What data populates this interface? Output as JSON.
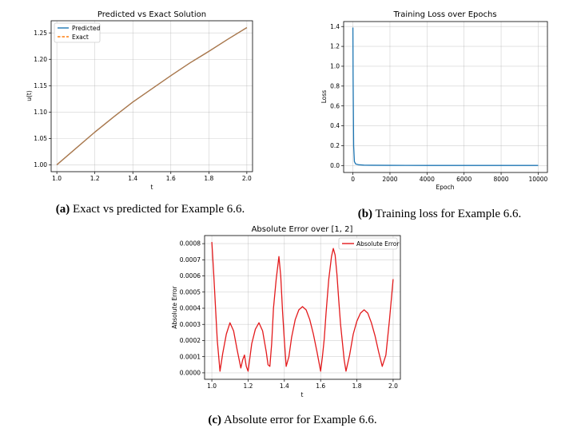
{
  "charts": [
    {
      "id": "a",
      "title": "Predicted vs Exact Solution",
      "xlabel": "t",
      "ylabel": "u(t)",
      "caption_label": "(a)",
      "caption_text": " Exact vs predicted for Example 6.6."
    },
    {
      "id": "b",
      "title": "Training Loss over Epochs",
      "xlabel": "Epoch",
      "ylabel": "Loss",
      "caption_label": "(b)",
      "caption_text": " Training loss for Example 6.6."
    },
    {
      "id": "c",
      "title": "Absolute Error over [1, 2]",
      "xlabel": "t",
      "ylabel": "Absolute Error",
      "caption_label": "(c)",
      "caption_text": " Absolute error for Example 6.6."
    }
  ],
  "chart_data": [
    {
      "type": "line",
      "title": "Predicted vs Exact Solution",
      "xlabel": "t",
      "ylabel": "u(t)",
      "xlim": [
        0.97,
        2.03
      ],
      "ylim": [
        0.987,
        1.273
      ],
      "xticks": [
        "1.0",
        "1.2",
        "1.4",
        "1.6",
        "1.8",
        "2.0"
      ],
      "yticks": [
        "1.00",
        "1.05",
        "1.10",
        "1.15",
        "1.20",
        "1.25"
      ],
      "grid": true,
      "legend": "top-left",
      "series": [
        {
          "name": "Predicted",
          "color": "#1f77b4",
          "style": "solid",
          "x": [
            1.0,
            1.1,
            1.2,
            1.3,
            1.4,
            1.5,
            1.6,
            1.7,
            1.8,
            1.9,
            2.0
          ],
          "y": [
            1.0,
            1.031,
            1.062,
            1.091,
            1.119,
            1.144,
            1.169,
            1.193,
            1.215,
            1.238,
            1.26
          ]
        },
        {
          "name": "Exact",
          "color": "#ff7f0e",
          "style": "dashed",
          "x": [
            1.0,
            1.1,
            1.2,
            1.3,
            1.4,
            1.5,
            1.6,
            1.7,
            1.8,
            1.9,
            2.0
          ],
          "y": [
            1.0,
            1.031,
            1.062,
            1.091,
            1.119,
            1.144,
            1.169,
            1.193,
            1.215,
            1.238,
            1.26
          ]
        }
      ],
      "overlap_color": "#a9794f"
    },
    {
      "type": "line",
      "title": "Training Loss over Epochs",
      "xlabel": "Epoch",
      "ylabel": "Loss",
      "xlim": [
        -500,
        10500
      ],
      "ylim": [
        -0.07,
        1.45
      ],
      "xticks": [
        "0",
        "2000",
        "4000",
        "6000",
        "8000",
        "10000"
      ],
      "yticks": [
        "0.0",
        "0.2",
        "0.4",
        "0.6",
        "0.8",
        "1.0",
        "1.2",
        "1.4"
      ],
      "grid": true,
      "series": [
        {
          "color": "#1f77b4",
          "x": [
            0,
            10,
            40,
            80,
            150,
            300,
            600,
            1000,
            2000,
            4000,
            6000,
            8000,
            10000
          ],
          "y": [
            1.39,
            0.9,
            0.2,
            0.04,
            0.015,
            0.008,
            0.004,
            0.003,
            0.002,
            0.001,
            0.001,
            0.001,
            0.001
          ]
        }
      ]
    },
    {
      "type": "line",
      "title": "Absolute Error over [1, 2]",
      "xlabel": "t",
      "ylabel": "Absolute Error",
      "xlim": [
        0.96,
        2.04
      ],
      "ylim": [
        -4e-05,
        0.00085
      ],
      "xticks": [
        "1.0",
        "1.2",
        "1.4",
        "1.6",
        "1.8",
        "2.0"
      ],
      "yticks": [
        "0.0000",
        "0.0001",
        "0.0002",
        "0.0003",
        "0.0004",
        "0.0005",
        "0.0006",
        "0.0007",
        "0.0008"
      ],
      "grid": true,
      "legend": "top-right",
      "series": [
        {
          "name": "Absolute Error",
          "color": "#e31a1c",
          "x": [
            1.0,
            1.01,
            1.02,
            1.03,
            1.045,
            1.06,
            1.08,
            1.1,
            1.12,
            1.14,
            1.16,
            1.17,
            1.18,
            1.19,
            1.2,
            1.22,
            1.24,
            1.26,
            1.28,
            1.3,
            1.31,
            1.32,
            1.33,
            1.34,
            1.355,
            1.37,
            1.38,
            1.39,
            1.4,
            1.41,
            1.425,
            1.44,
            1.46,
            1.48,
            1.5,
            1.52,
            1.54,
            1.56,
            1.58,
            1.6,
            1.61,
            1.62,
            1.63,
            1.645,
            1.66,
            1.67,
            1.68,
            1.69,
            1.7,
            1.71,
            1.72,
            1.73,
            1.74,
            1.76,
            1.78,
            1.8,
            1.82,
            1.84,
            1.86,
            1.88,
            1.9,
            1.92,
            1.94,
            1.96,
            1.98,
            2.0
          ],
          "y": [
            0.00081,
            0.00062,
            0.00041,
            0.0002,
            1e-05,
            0.00012,
            0.00024,
            0.00031,
            0.00026,
            0.00014,
            3e-05,
            8e-05,
            0.00011,
            4e-05,
            1e-05,
            0.00018,
            0.00027,
            0.00031,
            0.00026,
            0.00013,
            5e-05,
            4e-05,
            0.00018,
            0.0004,
            0.00058,
            0.00072,
            0.0006,
            0.00038,
            0.0002,
            4e-05,
            0.0001,
            0.00022,
            0.00033,
            0.00039,
            0.00041,
            0.00039,
            0.00033,
            0.00024,
            0.00013,
            1e-05,
            0.0001,
            0.00021,
            0.00037,
            0.00058,
            0.00072,
            0.00077,
            0.00073,
            0.00061,
            0.00045,
            0.0003,
            0.00019,
            8e-05,
            1e-05,
            0.00011,
            0.00024,
            0.00032,
            0.00037,
            0.00039,
            0.00037,
            0.00031,
            0.00023,
            0.00013,
            4e-05,
            0.00011,
            0.00033,
            0.00058
          ]
        }
      ]
    }
  ]
}
